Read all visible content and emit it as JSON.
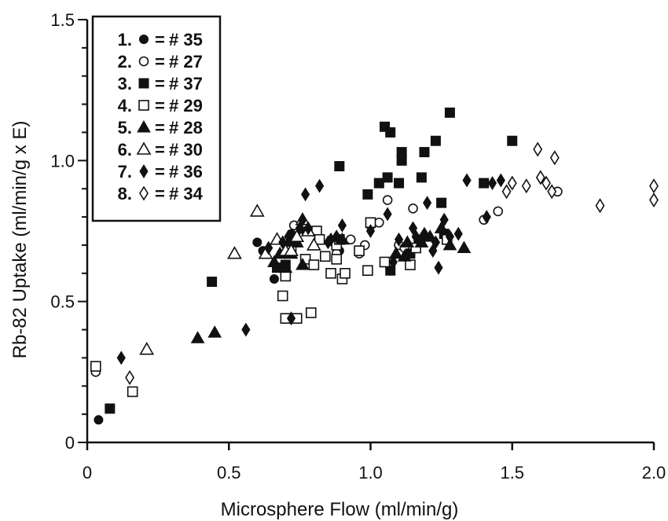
{
  "chart_data": {
    "type": "scatter",
    "xlabel": "Microsphere Flow (ml/min/g)",
    "ylabel": "Rb-82 Uptake (ml/min/g x E)",
    "xlim": [
      0,
      2.0
    ],
    "ylim": [
      0,
      1.5
    ],
    "x_ticks": [
      0,
      0.5,
      1.0,
      1.5,
      2.0
    ],
    "x_tick_labels": [
      "0",
      "0.5",
      "1.0",
      "1.5",
      "2.0"
    ],
    "y_ticks": [
      0,
      0.5,
      1.0,
      1.5
    ],
    "y_tick_labels": [
      "0",
      "0.5",
      "1.0",
      "1.5"
    ],
    "grid": false,
    "legend_position": "top-left",
    "series": [
      {
        "name": "# 35",
        "number": "1.",
        "marker": "filled-circle",
        "points": [
          [
            0.04,
            0.08
          ],
          [
            0.6,
            0.71
          ],
          [
            0.62,
            0.68
          ],
          [
            0.66,
            0.58
          ],
          [
            0.72,
            0.74
          ],
          [
            0.77,
            0.75
          ],
          [
            0.89,
            0.68
          ]
        ]
      },
      {
        "name": "# 27",
        "number": "2.",
        "marker": "open-circle",
        "points": [
          [
            0.03,
            0.25
          ],
          [
            0.73,
            0.77
          ],
          [
            0.88,
            0.67
          ],
          [
            0.93,
            0.72
          ],
          [
            0.96,
            0.67
          ],
          [
            0.98,
            0.7
          ],
          [
            1.0,
            0.77
          ],
          [
            1.03,
            0.78
          ],
          [
            1.06,
            0.86
          ],
          [
            1.1,
            0.7
          ],
          [
            1.12,
            0.69
          ],
          [
            1.15,
            0.83
          ],
          [
            1.4,
            0.79
          ],
          [
            1.45,
            0.82
          ],
          [
            1.66,
            0.89
          ]
        ]
      },
      {
        "name": "# 37",
        "number": "3.",
        "marker": "filled-square",
        "points": [
          [
            0.08,
            0.12
          ],
          [
            0.44,
            0.57
          ],
          [
            0.67,
            0.62
          ],
          [
            0.7,
            0.63
          ],
          [
            0.72,
            0.71
          ],
          [
            0.89,
            0.98
          ],
          [
            0.99,
            0.88
          ],
          [
            1.03,
            0.92
          ],
          [
            1.05,
            1.12
          ],
          [
            1.06,
            0.94
          ],
          [
            1.07,
            1.1
          ],
          [
            1.07,
            0.61
          ],
          [
            1.1,
            0.92
          ],
          [
            1.11,
            1.03
          ],
          [
            1.11,
            1.0
          ],
          [
            1.14,
            0.67
          ],
          [
            1.17,
            0.72
          ],
          [
            1.18,
            0.94
          ],
          [
            1.19,
            1.03
          ],
          [
            1.23,
            1.07
          ],
          [
            1.25,
            0.85
          ],
          [
            1.26,
            0.74
          ],
          [
            1.28,
            1.17
          ],
          [
            1.4,
            0.92
          ],
          [
            1.5,
            1.07
          ]
        ]
      },
      {
        "name": "# 29",
        "number": "4.",
        "marker": "open-square",
        "points": [
          [
            0.03,
            0.27
          ],
          [
            0.16,
            0.18
          ],
          [
            0.69,
            0.52
          ],
          [
            0.7,
            0.44
          ],
          [
            0.7,
            0.59
          ],
          [
            0.72,
            0.68
          ],
          [
            0.74,
            0.44
          ],
          [
            0.77,
            0.65
          ],
          [
            0.79,
            0.46
          ],
          [
            0.8,
            0.63
          ],
          [
            0.81,
            0.75
          ],
          [
            0.82,
            0.72
          ],
          [
            0.84,
            0.66
          ],
          [
            0.86,
            0.6
          ],
          [
            0.88,
            0.65
          ],
          [
            0.88,
            0.7
          ],
          [
            0.89,
            0.72
          ],
          [
            0.9,
            0.58
          ],
          [
            0.91,
            0.6
          ],
          [
            0.96,
            0.68
          ],
          [
            0.99,
            0.61
          ],
          [
            1.0,
            0.78
          ],
          [
            1.05,
            0.64
          ],
          [
            1.14,
            0.63
          ],
          [
            1.16,
            0.69
          ],
          [
            1.27,
            0.72
          ]
        ]
      },
      {
        "name": "# 28",
        "number": "5.",
        "marker": "filled-triangle",
        "points": [
          [
            0.39,
            0.37
          ],
          [
            0.45,
            0.39
          ],
          [
            0.66,
            0.64
          ],
          [
            0.68,
            0.67
          ],
          [
            0.7,
            0.62
          ],
          [
            0.72,
            0.67
          ],
          [
            0.74,
            0.71
          ],
          [
            0.76,
            0.63
          ],
          [
            0.9,
            0.72
          ],
          [
            1.09,
            0.67
          ],
          [
            1.12,
            0.66
          ],
          [
            1.13,
            0.71
          ],
          [
            1.18,
            0.71
          ],
          [
            1.21,
            0.73
          ],
          [
            1.25,
            0.76
          ],
          [
            1.28,
            0.7
          ],
          [
            1.33,
            0.69
          ]
        ]
      },
      {
        "name": "# 30",
        "number": "6.",
        "marker": "open-triangle",
        "points": [
          [
            0.21,
            0.33
          ],
          [
            0.52,
            0.67
          ],
          [
            0.6,
            0.82
          ],
          [
            0.63,
            0.67
          ],
          [
            0.67,
            0.72
          ],
          [
            0.7,
            0.68
          ],
          [
            0.72,
            0.68
          ],
          [
            0.74,
            0.73
          ],
          [
            0.76,
            0.79
          ],
          [
            0.78,
            0.75
          ],
          [
            0.8,
            0.7
          ]
        ]
      },
      {
        "name": "# 36",
        "number": "7.",
        "marker": "filled-diamond",
        "points": [
          [
            0.12,
            0.3
          ],
          [
            0.56,
            0.4
          ],
          [
            0.64,
            0.69
          ],
          [
            0.69,
            0.71
          ],
          [
            0.71,
            0.73
          ],
          [
            0.72,
            0.44
          ],
          [
            0.75,
            0.76
          ],
          [
            0.76,
            0.79
          ],
          [
            0.78,
            0.76
          ],
          [
            0.77,
            0.88
          ],
          [
            0.82,
            0.91
          ],
          [
            0.85,
            0.71
          ],
          [
            0.86,
            0.72
          ],
          [
            0.88,
            0.73
          ],
          [
            0.9,
            0.77
          ],
          [
            1.0,
            0.75
          ],
          [
            1.06,
            0.81
          ],
          [
            1.08,
            0.64
          ],
          [
            1.1,
            0.72
          ],
          [
            1.15,
            0.76
          ],
          [
            1.16,
            0.73
          ],
          [
            1.18,
            0.72
          ],
          [
            1.19,
            0.74
          ],
          [
            1.2,
            0.85
          ],
          [
            1.22,
            0.68
          ],
          [
            1.23,
            0.71
          ],
          [
            1.24,
            0.62
          ],
          [
            1.26,
            0.79
          ],
          [
            1.28,
            0.73
          ],
          [
            1.31,
            0.74
          ],
          [
            1.34,
            0.93
          ],
          [
            1.41,
            0.8
          ],
          [
            1.43,
            0.92
          ],
          [
            1.46,
            0.93
          ]
        ]
      },
      {
        "name": "# 34",
        "number": "8.",
        "marker": "open-diamond",
        "points": [
          [
            0.15,
            0.23
          ],
          [
            1.48,
            0.89
          ],
          [
            1.5,
            0.92
          ],
          [
            1.55,
            0.91
          ],
          [
            1.59,
            1.04
          ],
          [
            1.6,
            0.94
          ],
          [
            1.62,
            0.92
          ],
          [
            1.64,
            0.89
          ],
          [
            1.65,
            1.01
          ],
          [
            1.81,
            0.84
          ],
          [
            2.0,
            0.91
          ],
          [
            2.0,
            0.86
          ]
        ]
      }
    ]
  }
}
